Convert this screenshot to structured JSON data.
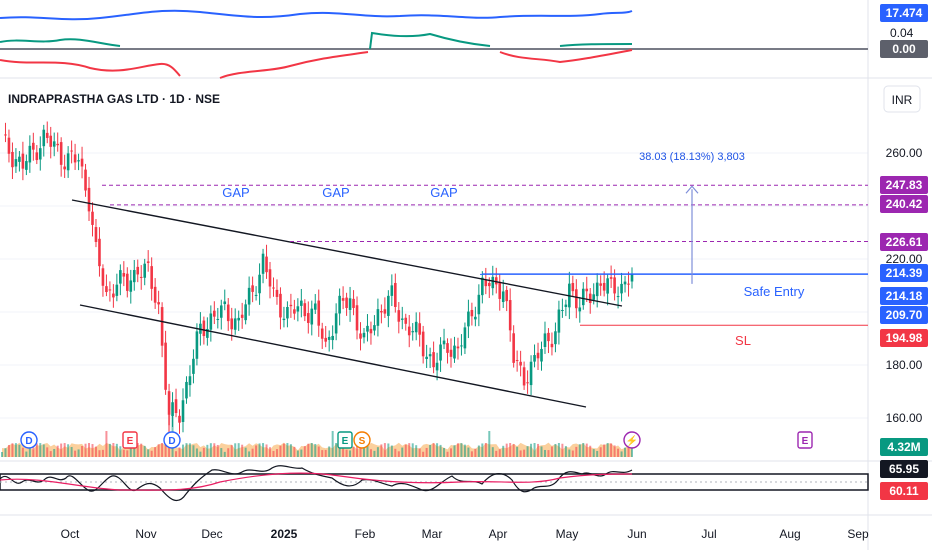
{
  "chart_data": {
    "type": "candlestick",
    "title": "INDRAPRASTHA GAS LTD · 1D · NSE",
    "currency": "INR",
    "price_axis": {
      "ylim": [
        152,
        278
      ],
      "ticks": [
        260.0,
        220.0,
        200.0,
        180.0,
        160.0
      ],
      "tick_labels": [
        "260.00",
        "220.00",
        "",
        "180.00",
        "160.00"
      ]
    },
    "x_axis": {
      "labels": [
        "Oct",
        "Nov",
        "Dec",
        "2025",
        "Feb",
        "Mar",
        "Apr",
        "May",
        "Jun",
        "Jul",
        "Aug",
        "Sep"
      ],
      "bold": [
        "2025"
      ]
    },
    "price_series_anchors": [
      {
        "d": 0,
        "p": 264
      },
      {
        "d": 6,
        "p": 255
      },
      {
        "d": 12,
        "p": 266
      },
      {
        "d": 18,
        "p": 258
      },
      {
        "d": 22,
        "p": 257
      },
      {
        "d": 25,
        "p": 243
      },
      {
        "d": 27,
        "p": 222
      },
      {
        "d": 30,
        "p": 206
      },
      {
        "d": 33,
        "p": 212
      },
      {
        "d": 36,
        "p": 210
      },
      {
        "d": 39,
        "p": 217
      },
      {
        "d": 42,
        "p": 214
      },
      {
        "d": 45,
        "p": 202
      },
      {
        "d": 48,
        "p": 160
      },
      {
        "d": 51,
        "p": 162
      },
      {
        "d": 54,
        "p": 178
      },
      {
        "d": 57,
        "p": 193
      },
      {
        "d": 60,
        "p": 198
      },
      {
        "d": 64,
        "p": 200
      },
      {
        "d": 68,
        "p": 196
      },
      {
        "d": 72,
        "p": 208
      },
      {
        "d": 75,
        "p": 219
      },
      {
        "d": 78,
        "p": 206
      },
      {
        "d": 82,
        "p": 199
      },
      {
        "d": 86,
        "p": 202
      },
      {
        "d": 90,
        "p": 199
      },
      {
        "d": 93,
        "p": 187
      },
      {
        "d": 96,
        "p": 200
      },
      {
        "d": 100,
        "p": 205
      },
      {
        "d": 104,
        "p": 188
      },
      {
        "d": 108,
        "p": 200
      },
      {
        "d": 112,
        "p": 205
      },
      {
        "d": 116,
        "p": 195
      },
      {
        "d": 120,
        "p": 190
      },
      {
        "d": 124,
        "p": 180
      },
      {
        "d": 128,
        "p": 188
      },
      {
        "d": 131,
        "p": 185
      },
      {
        "d": 135,
        "p": 200
      },
      {
        "d": 138,
        "p": 210
      },
      {
        "d": 141,
        "p": 210
      },
      {
        "d": 144,
        "p": 210
      },
      {
        "d": 147,
        "p": 182
      },
      {
        "d": 150,
        "p": 176
      },
      {
        "d": 153,
        "p": 180
      },
      {
        "d": 156,
        "p": 190
      },
      {
        "d": 159,
        "p": 192
      },
      {
        "d": 161,
        "p": 200
      },
      {
        "d": 163,
        "p": 210
      },
      {
        "d": 166,
        "p": 203
      },
      {
        "d": 169,
        "p": 206
      },
      {
        "d": 172,
        "p": 212
      },
      {
        "d": 175,
        "p": 208
      },
      {
        "d": 178,
        "p": 210
      },
      {
        "d": 181,
        "p": 214.39
      }
    ],
    "last_bar_index": 181,
    "trendlines": [
      {
        "name": "channel-upper",
        "from": {
          "d": 0,
          "p": 241
        },
        "to": {
          "d": 166,
          "p": 207
        }
      },
      {
        "name": "channel-lower",
        "from": {
          "d": 2,
          "p": 209
        },
        "to": {
          "d": 152,
          "p": 170
        }
      }
    ],
    "gap_lines": [
      247.83,
      240.42,
      226.61
    ],
    "gap_labels": [
      "GAP",
      "GAP",
      "GAP"
    ],
    "levels": [
      {
        "name": "breakout",
        "value": 214.39,
        "color": "#2962ff"
      },
      {
        "name": "entry",
        "value": 214.18,
        "color": "#2962ff"
      },
      {
        "name": "stop-loss",
        "value": 194.98,
        "color": "#f23645"
      }
    ],
    "annotations": {
      "safe_entry": "Safe Entry",
      "sl": "SL",
      "measure": "38.03 (18.13%) 3,803"
    },
    "price_badges": [
      {
        "value": "247.83",
        "color": "#9c27b0"
      },
      {
        "value": "240.42",
        "color": "#9c27b0"
      },
      {
        "value": "226.61",
        "color": "#9c27b0"
      },
      {
        "value": "214.39",
        "color": "#2962ff"
      },
      {
        "value": "214.18",
        "color": "#2962ff"
      },
      {
        "value": "209.70",
        "color": "#2962ff"
      },
      {
        "value": "194.98",
        "color": "#f23645"
      }
    ],
    "volume_badge": "4.32M",
    "events": [
      {
        "label": "D",
        "color": "#2962ff"
      },
      {
        "label": "E",
        "color": "#f23645"
      },
      {
        "label": "D",
        "color": "#2962ff"
      },
      {
        "label": "E",
        "color": "#089981"
      },
      {
        "label": "S",
        "color": "#f57c00"
      },
      {
        "label": "⚡",
        "color": "#9c27b0"
      },
      {
        "label": "E",
        "color": "#9c27b0"
      }
    ],
    "top_indicator": {
      "badges": [
        "17.474",
        "0.00"
      ],
      "partial_label": "0.04"
    },
    "rsi_panel": {
      "badges": [
        "65.95",
        "60.11"
      ]
    }
  },
  "colors": {
    "up": "#089981",
    "down": "#f23645",
    "gap": "#9c27b0",
    "blue": "#2962ff",
    "volume": "#f7a23c"
  }
}
